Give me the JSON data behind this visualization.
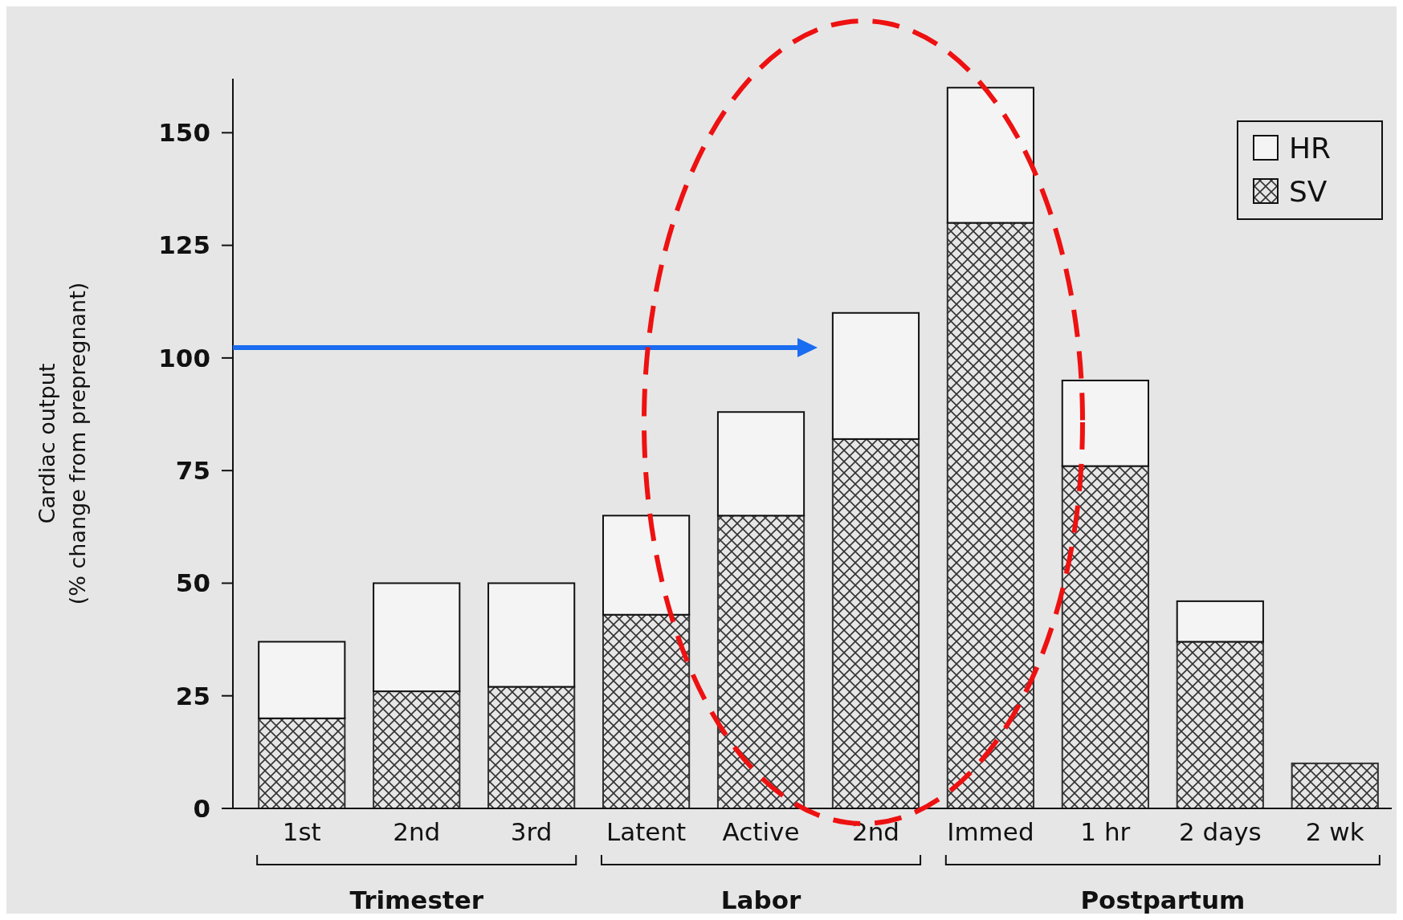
{
  "chart_data": {
    "type": "bar",
    "stacked": true,
    "ylabel": "Cardiac output\n(% change from prepregnant)",
    "categories": [
      "1st",
      "2nd",
      "3rd",
      "Latent",
      "Active",
      "2nd",
      "Immed",
      "1 hr",
      "2 days",
      "2 wk"
    ],
    "series": [
      {
        "name": "SV",
        "color": "#333333",
        "values": [
          20,
          26,
          27,
          43,
          65,
          82,
          130,
          76,
          37,
          10
        ]
      },
      {
        "name": "HR",
        "color": "#f4f4f4",
        "values": [
          17,
          24,
          23,
          22,
          23,
          28,
          30,
          19,
          9,
          null
        ]
      }
    ],
    "ylim": [
      0,
      162
    ],
    "yticks": [
      0,
      25,
      50,
      75,
      100,
      125,
      150
    ],
    "legend": "top right",
    "annotations": [
      "Trimester",
      "Labor",
      "Postpartum"
    ]
  }
}
